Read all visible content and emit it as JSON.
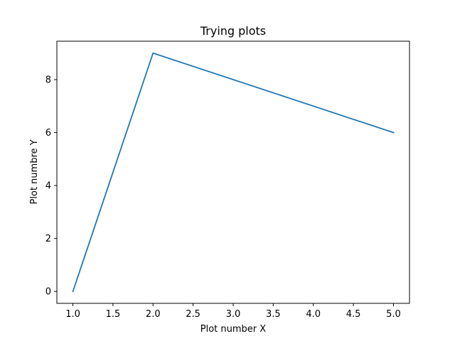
{
  "chart_data": {
    "type": "line",
    "title": "Trying plots",
    "xlabel": "Plot number X",
    "ylabel": "Plot numbre Y",
    "xlim": [
      0.8,
      5.2
    ],
    "ylim": [
      -0.45,
      9.45
    ],
    "x_ticks": [
      1.0,
      1.5,
      2.0,
      2.5,
      3.0,
      3.5,
      4.0,
      4.5,
      5.0
    ],
    "x_tick_labels": [
      "1.0",
      "1.5",
      "2.0",
      "2.5",
      "3.0",
      "3.5",
      "4.0",
      "4.5",
      "5.0"
    ],
    "y_ticks": [
      0,
      2,
      4,
      6,
      8
    ],
    "y_tick_labels": [
      "0",
      "2",
      "4",
      "6",
      "8"
    ],
    "grid": false,
    "series": [
      {
        "x": [
          1,
          2,
          5
        ],
        "y": [
          0,
          9,
          6
        ],
        "color": "#1f77b4"
      }
    ]
  }
}
